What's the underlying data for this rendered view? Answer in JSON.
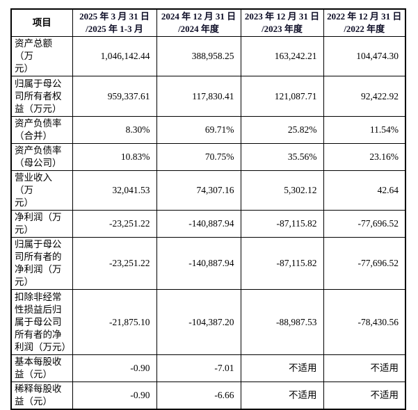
{
  "table": {
    "columns": [
      {
        "label": "项目"
      },
      {
        "label": "2025 年 3 月 31 日\n/2025 年 1-3 月"
      },
      {
        "label": "2024 年 12 月 31 日\n/2024 年度"
      },
      {
        "label": "2023 年 12 月 31 日\n/2023 年度"
      },
      {
        "label": "2022 年 12 月 31 日\n/2022 年度"
      }
    ],
    "rows": [
      {
        "label": "资产总额（万\n元）",
        "values": [
          "1,046,142.44",
          "388,958.25",
          "163,242.21",
          "104,474.30"
        ]
      },
      {
        "label": "归属于母公\n司所有者权\n益（万元）",
        "values": [
          "959,337.61",
          "117,830.41",
          "121,087.71",
          "92,422.92"
        ]
      },
      {
        "label": "资产负债率\n（合并）",
        "values": [
          "8.30%",
          "69.71%",
          "25.82%",
          "11.54%"
        ]
      },
      {
        "label": "资产负债率\n（母公司）",
        "values": [
          "10.83%",
          "70.75%",
          "35.56%",
          "23.16%"
        ]
      },
      {
        "label": "营业收入（万\n元）",
        "values": [
          "32,041.53",
          "74,307.16",
          "5,302.12",
          "42.64"
        ]
      },
      {
        "label": "净利润（万\n元）",
        "values": [
          "-23,251.22",
          "-140,887.94",
          "-87,115.82",
          "-77,696.52"
        ]
      },
      {
        "label": "归属于母公\n司所有者的\n净利润（万\n元）",
        "values": [
          "-23,251.22",
          "-140,887.94",
          "-87,115.82",
          "-77,696.52"
        ]
      },
      {
        "label": "扣除非经常\n性损益后归\n属于母公司\n所有者的净\n利润（万元）",
        "values": [
          "-21,875.10",
          "-104,387.20",
          "-88,987.53",
          "-78,430.56"
        ]
      },
      {
        "label": "基本每股收\n益（元）",
        "values": [
          "-0.90",
          "-7.01",
          "不适用",
          "不适用"
        ]
      },
      {
        "label": "稀释每股收\n益（元）",
        "values": [
          "-0.90",
          "-6.66",
          "不适用",
          "不适用"
        ]
      }
    ]
  }
}
